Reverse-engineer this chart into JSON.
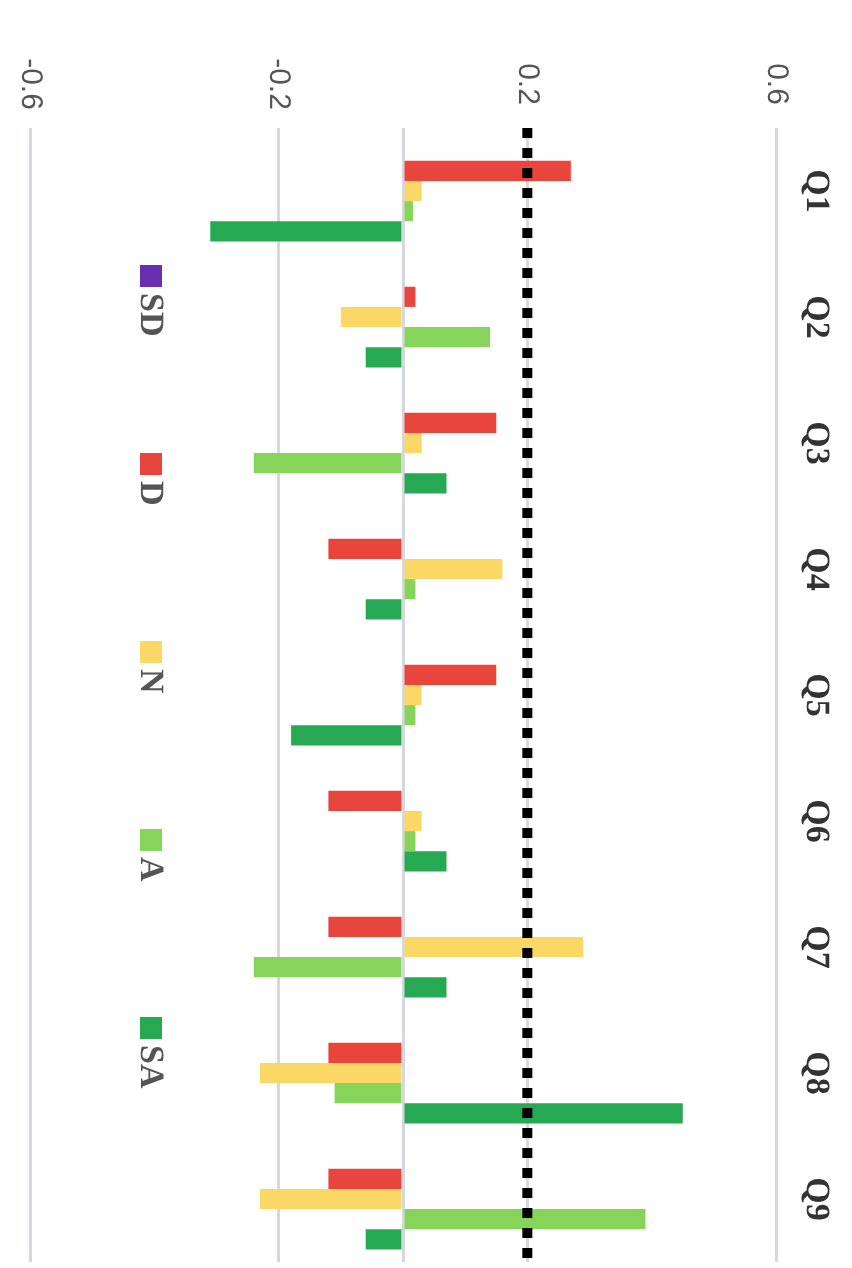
{
  "chart_data": {
    "type": "bar",
    "orientation": "horizontal",
    "categories": [
      "Q1",
      "Q2",
      "Q3",
      "Q4",
      "Q5",
      "Q6",
      "Q7",
      "Q8",
      "Q9"
    ],
    "series": [
      {
        "name": "SD",
        "color": "#6a2eb0",
        "values": [
          0,
          0,
          0,
          0,
          0,
          0,
          0,
          0,
          0
        ]
      },
      {
        "name": "D",
        "color": "#e8453c",
        "values": [
          0.27,
          0.02,
          0.15,
          -0.12,
          0.15,
          -0.12,
          -0.12,
          -0.12,
          -0.12
        ]
      },
      {
        "name": "N",
        "color": "#fbd766",
        "values": [
          0.03,
          -0.1,
          0.03,
          0.16,
          0.03,
          0.03,
          0.29,
          -0.23,
          -0.23
        ]
      },
      {
        "name": "A",
        "color": "#86d45a",
        "values": [
          0.016,
          0.14,
          -0.24,
          0.02,
          0.02,
          0.02,
          -0.24,
          -0.11,
          0.39
        ]
      },
      {
        "name": "SA",
        "color": "#27a853",
        "values": [
          -0.31,
          -0.06,
          0.07,
          -0.06,
          -0.18,
          0.07,
          0.07,
          0.45,
          -0.06
        ]
      }
    ],
    "xlim": [
      -0.6,
      0.6
    ],
    "xticks": [
      -0.6,
      -0.2,
      {
        "value": 0,
        "label": null
      },
      0.2,
      0.6
    ],
    "ref_lines": [
      {
        "axis": "x",
        "value": 0.2,
        "color": "#000000",
        "line_style": "dotted"
      }
    ],
    "grid": "x",
    "legend": "left"
  }
}
